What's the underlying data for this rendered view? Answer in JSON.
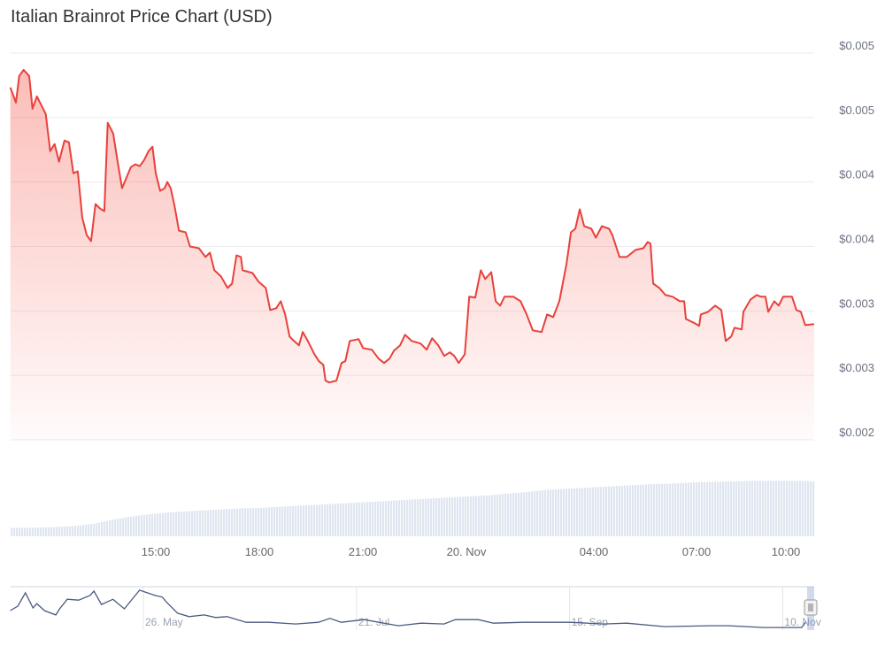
{
  "chart_data": {
    "type": "line",
    "title": "Italian Brainrot Price Chart (USD)",
    "y_tick_labels": [
      "$0.005",
      "$0.005",
      "$0.004",
      "$0.004",
      "$0.003",
      "$0.003",
      "$0.002"
    ],
    "y_tick_values": [
      0.005,
      0.0045,
      0.004,
      0.0035,
      0.003,
      0.0025,
      0.002
    ],
    "ylim": [
      0.002,
      0.005
    ],
    "x_tick_labels": [
      "15:00",
      "18:00",
      "21:00",
      "20. Nov",
      "04:00",
      "07:00",
      "10:00"
    ],
    "grid": true,
    "colors": {
      "line": "#e8413c",
      "fill": "#f44336",
      "volume": "#dfe6f0",
      "navigator_line": "#4a5a80",
      "grid": "#ebebeb"
    },
    "series": [
      {
        "points": [
          [
            "19 Nov 10:37",
            0.004733
          ],
          [
            "19 Nov 10:47",
            0.004616
          ],
          [
            "19 Nov 10:53",
            0.004822
          ],
          [
            "19 Nov 11:01",
            0.00487
          ],
          [
            "19 Nov 11:11",
            0.004822
          ],
          [
            "19 Nov 11:17",
            0.004568
          ],
          [
            "19 Nov 11:25",
            0.004664
          ],
          [
            "19 Nov 11:41",
            0.004527
          ],
          [
            "19 Nov 11:49",
            0.00424
          ],
          [
            "19 Nov 11:57",
            0.004294
          ],
          [
            "19 Nov 12:05",
            0.004158
          ],
          [
            "19 Nov 12:15",
            0.004322
          ],
          [
            "19 Nov 12:23",
            0.004308
          ],
          [
            "19 Nov 12:31",
            0.004068
          ],
          [
            "19 Nov 12:39",
            0.004082
          ],
          [
            "19 Nov 12:47",
            0.003726
          ],
          [
            "19 Nov 12:55",
            0.003589
          ],
          [
            "19 Nov 13:03",
            0.003541
          ],
          [
            "19 Nov 13:11",
            0.003829
          ],
          [
            "19 Nov 13:19",
            0.003795
          ],
          [
            "19 Nov 13:27",
            0.003774
          ],
          [
            "19 Nov 13:33",
            0.004459
          ],
          [
            "19 Nov 13:43",
            0.004377
          ],
          [
            "19 Nov 13:51",
            0.004158
          ],
          [
            "19 Nov 13:59",
            0.003952
          ],
          [
            "19 Nov 14:07",
            0.004034
          ],
          [
            "19 Nov 14:15",
            0.004116
          ],
          [
            "19 Nov 14:23",
            0.004137
          ],
          [
            "19 Nov 14:31",
            0.004123
          ],
          [
            "19 Nov 14:39",
            0.004171
          ],
          [
            "19 Nov 14:47",
            0.00424
          ],
          [
            "19 Nov 14:54",
            0.004274
          ],
          [
            "19 Nov 15:00",
            0.004068
          ],
          [
            "19 Nov 15:08",
            0.003931
          ],
          [
            "19 Nov 15:16",
            0.003952
          ],
          [
            "19 Nov 15:21",
            0.004
          ],
          [
            "19 Nov 15:27",
            0.003952
          ],
          [
            "19 Nov 15:34",
            0.003815
          ],
          [
            "19 Nov 15:42",
            0.003623
          ],
          [
            "19 Nov 15:54",
            0.00361
          ],
          [
            "19 Nov 16:02",
            0.0035
          ],
          [
            "19 Nov 16:18",
            0.003486
          ],
          [
            "19 Nov 16:30",
            0.003418
          ],
          [
            "19 Nov 16:38",
            0.003452
          ],
          [
            "19 Nov 16:46",
            0.003315
          ],
          [
            "19 Nov 16:58",
            0.003267
          ],
          [
            "19 Nov 17:10",
            0.003178
          ],
          [
            "19 Nov 17:18",
            0.003212
          ],
          [
            "19 Nov 17:26",
            0.003431
          ],
          [
            "19 Nov 17:34",
            0.003418
          ],
          [
            "19 Nov 17:37",
            0.003315
          ],
          [
            "19 Nov 17:55",
            0.003294
          ],
          [
            "19 Nov 18:06",
            0.003226
          ],
          [
            "19 Nov 18:19",
            0.003178
          ],
          [
            "19 Nov 18:27",
            0.003007
          ],
          [
            "19 Nov 18:38",
            0.003021
          ],
          [
            "19 Nov 18:46",
            0.003075
          ],
          [
            "19 Nov 18:54",
            0.002973
          ],
          [
            "19 Nov 19:02",
            0.002801
          ],
          [
            "19 Nov 19:10",
            0.002767
          ],
          [
            "19 Nov 19:19",
            0.002733
          ],
          [
            "19 Nov 19:26",
            0.002836
          ],
          [
            "19 Nov 19:35",
            0.002767
          ],
          [
            "19 Nov 19:47",
            0.002664
          ],
          [
            "19 Nov 19:55",
            0.00261
          ],
          [
            "19 Nov 20:03",
            0.002582
          ],
          [
            "19 Nov 20:07",
            0.002459
          ],
          [
            "19 Nov 20:14",
            0.002445
          ],
          [
            "19 Nov 20:27",
            0.002459
          ],
          [
            "19 Nov 20:36",
            0.002596
          ],
          [
            "19 Nov 20:43",
            0.00261
          ],
          [
            "19 Nov 20:51",
            0.002767
          ],
          [
            "19 Nov 21:07",
            0.002781
          ],
          [
            "19 Nov 21:15",
            0.002712
          ],
          [
            "19 Nov 21:31",
            0.002699
          ],
          [
            "19 Nov 21:43",
            0.00263
          ],
          [
            "19 Nov 21:53",
            0.002596
          ],
          [
            "19 Nov 22:03",
            0.00263
          ],
          [
            "19 Nov 22:11",
            0.002692
          ],
          [
            "19 Nov 22:22",
            0.002733
          ],
          [
            "19 Nov 22:31",
            0.002815
          ],
          [
            "19 Nov 22:43",
            0.002767
          ],
          [
            "19 Nov 22:59",
            0.002747
          ],
          [
            "19 Nov 23:10",
            0.002699
          ],
          [
            "19 Nov 23:20",
            0.002788
          ],
          [
            "19 Nov 23:31",
            0.002733
          ],
          [
            "19 Nov 23:42",
            0.002651
          ],
          [
            "19 Nov 23:52",
            0.002678
          ],
          [
            "20 Nov 00:00",
            0.002651
          ],
          [
            "20 Nov 00:08",
            0.002596
          ],
          [
            "20 Nov 00:19",
            0.002664
          ],
          [
            "20 Nov 00:27",
            0.00311
          ],
          [
            "20 Nov 00:38",
            0.003103
          ],
          [
            "20 Nov 00:48",
            0.003315
          ],
          [
            "20 Nov 00:56",
            0.003247
          ],
          [
            "20 Nov 01:07",
            0.003301
          ],
          [
            "20 Nov 01:15",
            0.003075
          ],
          [
            "20 Nov 01:23",
            0.003041
          ],
          [
            "20 Nov 01:31",
            0.00311
          ],
          [
            "20 Nov 01:47",
            0.00311
          ],
          [
            "20 Nov 02:00",
            0.003075
          ],
          [
            "20 Nov 02:11",
            0.002973
          ],
          [
            "20 Nov 02:22",
            0.002849
          ],
          [
            "20 Nov 02:38",
            0.002836
          ],
          [
            "20 Nov 02:48",
            0.002973
          ],
          [
            "20 Nov 02:59",
            0.002952
          ],
          [
            "20 Nov 03:10",
            0.003075
          ],
          [
            "20 Nov 03:23",
            0.003363
          ],
          [
            "20 Nov 03:31",
            0.00361
          ],
          [
            "20 Nov 03:39",
            0.003637
          ],
          [
            "20 Nov 03:47",
            0.003788
          ],
          [
            "20 Nov 03:55",
            0.003657
          ],
          [
            "20 Nov 04:08",
            0.003637
          ],
          [
            "20 Nov 04:16",
            0.003568
          ],
          [
            "20 Nov 04:27",
            0.003657
          ],
          [
            "20 Nov 04:40",
            0.003637
          ],
          [
            "20 Nov 04:46",
            0.003589
          ],
          [
            "20 Nov 04:59",
            0.003418
          ],
          [
            "20 Nov 05:12",
            0.003418
          ],
          [
            "20 Nov 05:28",
            0.003473
          ],
          [
            "20 Nov 05:42",
            0.003486
          ],
          [
            "20 Nov 05:50",
            0.003534
          ],
          [
            "20 Nov 05:55",
            0.003521
          ],
          [
            "20 Nov 06:00",
            0.003212
          ],
          [
            "20 Nov 06:11",
            0.003178
          ],
          [
            "20 Nov 06:22",
            0.003123
          ],
          [
            "20 Nov 06:35",
            0.00311
          ],
          [
            "20 Nov 06:48",
            0.003075
          ],
          [
            "20 Nov 06:56",
            0.003075
          ],
          [
            "20 Nov 06:59",
            0.002938
          ],
          [
            "20 Nov 07:15",
            0.002904
          ],
          [
            "20 Nov 07:23",
            0.002884
          ],
          [
            "20 Nov 07:26",
            0.002973
          ],
          [
            "20 Nov 07:39",
            0.002993
          ],
          [
            "20 Nov 07:52",
            0.003041
          ],
          [
            "20 Nov 08:03",
            0.003007
          ],
          [
            "20 Nov 08:11",
            0.002767
          ],
          [
            "20 Nov 08:21",
            0.002801
          ],
          [
            "20 Nov 08:27",
            0.00287
          ],
          [
            "20 Nov 08:40",
            0.002856
          ],
          [
            "20 Nov 08:43",
            0.002993
          ],
          [
            "20 Nov 08:56",
            0.003089
          ],
          [
            "20 Nov 09:07",
            0.003123
          ],
          [
            "20 Nov 09:15",
            0.00311
          ],
          [
            "20 Nov 09:23",
            0.00311
          ],
          [
            "20 Nov 09:28",
            0.002993
          ],
          [
            "20 Nov 09:39",
            0.003075
          ],
          [
            "20 Nov 09:47",
            0.003041
          ],
          [
            "20 Nov 09:55",
            0.00311
          ],
          [
            "20 Nov 10:11",
            0.00311
          ],
          [
            "20 Nov 10:19",
            0.003007
          ],
          [
            "20 Nov 10:27",
            0.002993
          ],
          [
            "20 Nov 10:35",
            0.00289
          ],
          [
            "20 Nov 10:51",
            0.002897
          ]
        ]
      }
    ],
    "volume_relative": [
      0.15,
      0.15,
      0.16,
      0.18,
      0.22,
      0.3,
      0.36,
      0.4,
      0.43,
      0.45,
      0.47,
      0.49,
      0.5,
      0.52,
      0.54,
      0.56,
      0.58,
      0.6,
      0.62,
      0.64,
      0.66,
      0.68,
      0.7,
      0.72,
      0.75,
      0.78,
      0.82,
      0.84,
      0.86,
      0.88,
      0.9,
      0.92,
      0.93,
      0.95,
      0.96,
      0.97,
      0.98,
      0.98,
      0.98,
      0.97
    ],
    "navigator": {
      "x_tick_labels": [
        "26. May",
        "21. Jul",
        "15. Sep",
        "10. Nov"
      ],
      "x_tick_dates": [
        "26 May",
        "21 Jul",
        "15 Sep",
        "10 Nov"
      ],
      "points_relative": [
        [
          "21 Apr",
          0.45
        ],
        [
          "23 Apr",
          0.55
        ],
        [
          "25 Apr",
          0.86
        ],
        [
          "27 Apr",
          0.51
        ],
        [
          "28 Apr",
          0.61
        ],
        [
          "30 Apr",
          0.45
        ],
        [
          "3 May",
          0.35
        ],
        [
          "4 May",
          0.49
        ],
        [
          "6 May",
          0.71
        ],
        [
          "9 May",
          0.69
        ],
        [
          "12 May",
          0.8
        ],
        [
          "13 May",
          0.9
        ],
        [
          "15 May",
          0.59
        ],
        [
          "18 May",
          0.71
        ],
        [
          "21 May",
          0.49
        ],
        [
          "25 May",
          0.92
        ],
        [
          "29 May",
          0.8
        ],
        [
          "31 May",
          0.76
        ],
        [
          "1 Jun",
          0.65
        ],
        [
          "4 Jun",
          0.39
        ],
        [
          "7 Jun",
          0.31
        ],
        [
          "11 Jun",
          0.35
        ],
        [
          "14 Jun",
          0.29
        ],
        [
          "17 Jun",
          0.31
        ],
        [
          "22 Jun",
          0.18
        ],
        [
          "28 Jun",
          0.18
        ],
        [
          "5 Jul",
          0.14
        ],
        [
          "11 Jul",
          0.18
        ],
        [
          "14 Jul",
          0.27
        ],
        [
          "17 Jul",
          0.18
        ],
        [
          "23 Jul",
          0.24
        ],
        [
          "1 Aug",
          0.1
        ],
        [
          "7 Aug",
          0.16
        ],
        [
          "13 Aug",
          0.14
        ],
        [
          "16 Aug",
          0.24
        ],
        [
          "22 Aug",
          0.24
        ],
        [
          "26 Aug",
          0.16
        ],
        [
          "3 Sep",
          0.18
        ],
        [
          "15 Sep",
          0.18
        ],
        [
          "24 Sep",
          0.14
        ],
        [
          "30 Sep",
          0.16
        ],
        [
          "10 Oct",
          0.08
        ],
        [
          "22 Oct",
          0.1
        ],
        [
          "27 Oct",
          0.1
        ],
        [
          "5 Nov",
          0.06
        ],
        [
          "15 Nov",
          0.06
        ],
        [
          "16 Nov",
          0.18
        ]
      ]
    }
  }
}
